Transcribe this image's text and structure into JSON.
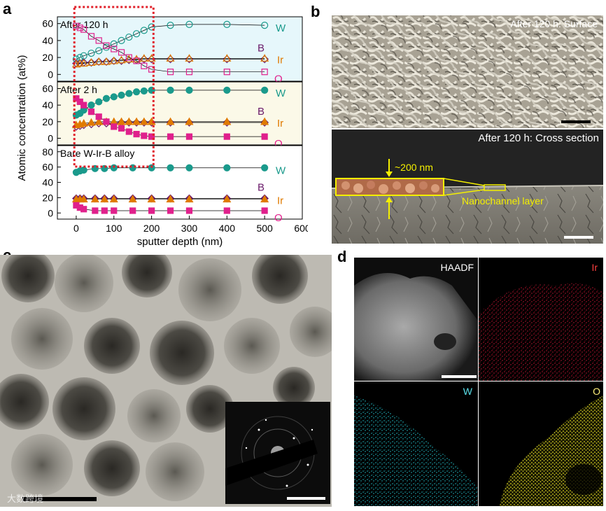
{
  "panels": {
    "a": "a",
    "b": "b",
    "c": "c",
    "d": "d"
  },
  "chart_data": {
    "type": "scatter",
    "xlabel": "sputter depth (nm)",
    "ylabel": "Atomic concentration (at%)",
    "xlim": [
      -50,
      600
    ],
    "xticks": [
      "0",
      "100",
      "200",
      "300",
      "400",
      "500",
      "600"
    ],
    "subplots": [
      {
        "title": "After 120 h",
        "ylim": [
          -8,
          68
        ],
        "yticks": [
          "0",
          "20",
          "40",
          "60"
        ],
        "background": "#e6f7fb",
        "series": [
          {
            "name": "W",
            "color": "#1a9a8c",
            "x": [
              0,
              10,
              20,
              40,
              60,
              80,
              100,
              120,
              140,
              160,
              180,
              200,
              250,
              300,
              400,
              500
            ],
            "y": [
              18,
              20,
              22,
              25,
              28,
              32,
              36,
              40,
              44,
              48,
              52,
              56,
              58,
              59,
              59,
              58
            ]
          },
          {
            "name": "B",
            "color": "#6a1b6a",
            "x": [
              0,
              10,
              20,
              40,
              60,
              80,
              100,
              120,
              140,
              160,
              180,
              200,
              250,
              300,
              400,
              500
            ],
            "y": [
              13,
              13,
              14,
              14,
              15,
              15,
              16,
              16,
              17,
              17,
              18,
              18,
              18,
              18,
              18,
              18
            ]
          },
          {
            "name": "Ir",
            "color": "#e07a00",
            "x": [
              0,
              10,
              20,
              40,
              60,
              80,
              100,
              120,
              140,
              160,
              180,
              200,
              250,
              300,
              400,
              500
            ],
            "y": [
              12,
              13,
              13,
              14,
              15,
              15,
              16,
              17,
              18,
              18,
              19,
              19,
              19,
              19,
              19,
              19
            ]
          },
          {
            "name": "O",
            "color": "#e0208c",
            "x": [
              0,
              10,
              20,
              40,
              60,
              80,
              100,
              120,
              140,
              160,
              180,
              200,
              250,
              300,
              400,
              500
            ],
            "y": [
              57,
              55,
              53,
              45,
              40,
              34,
              30,
              26,
              20,
              16,
              10,
              6,
              3,
              3,
              3,
              3
            ]
          }
        ]
      },
      {
        "title": "After 2 h",
        "ylim": [
          -8,
          68
        ],
        "yticks": [
          "0",
          "20",
          "40",
          "60"
        ],
        "background": "#fbf9e8",
        "series": [
          {
            "name": "W",
            "color": "#1a9a8c",
            "x": [
              0,
              10,
              20,
              40,
              60,
              80,
              100,
              120,
              140,
              160,
              180,
              200,
              250,
              300,
              400,
              500
            ],
            "y": [
              28,
              30,
              34,
              40,
              44,
              48,
              50,
              52,
              54,
              56,
              57,
              58,
              58,
              58,
              58,
              58
            ]
          },
          {
            "name": "B",
            "color": "#6a1b6a",
            "x": [
              0,
              10,
              20,
              40,
              60,
              80,
              100,
              120,
              140,
              160,
              180,
              200,
              250,
              300,
              400,
              500
            ],
            "y": [
              14,
              15,
              16,
              17,
              18,
              18,
              18,
              19,
              19,
              19,
              19,
              19,
              19,
              19,
              19,
              19
            ]
          },
          {
            "name": "Ir",
            "color": "#e07a00",
            "x": [
              0,
              10,
              20,
              40,
              60,
              80,
              100,
              120,
              140,
              160,
              180,
              200,
              250,
              300,
              400,
              500
            ],
            "y": [
              16,
              17,
              18,
              19,
              20,
              20,
              20,
              20,
              20,
              20,
              20,
              20,
              20,
              20,
              20,
              20
            ]
          },
          {
            "name": "O",
            "color": "#e0208c",
            "x": [
              0,
              10,
              20,
              40,
              60,
              80,
              100,
              120,
              140,
              160,
              180,
              200,
              250,
              300,
              400,
              500
            ],
            "y": [
              48,
              44,
              40,
              32,
              26,
              20,
              14,
              12,
              8,
              5,
              3,
              2,
              2,
              2,
              2,
              2
            ]
          }
        ]
      },
      {
        "title": "Bare W-Ir-B alloy",
        "ylim": [
          -8,
          88
        ],
        "yticks": [
          "0",
          "20",
          "40",
          "60",
          "80"
        ],
        "background": "#ffffff",
        "series": [
          {
            "name": "W",
            "color": "#1a9a8c",
            "x": [
              0,
              10,
              20,
              50,
              75,
              100,
              150,
              200,
              250,
              300,
              400,
              500
            ],
            "y": [
              53,
              55,
              56,
              58,
              58,
              59,
              59,
              59,
              59,
              59,
              59,
              59
            ]
          },
          {
            "name": "B",
            "color": "#6a1b6a",
            "x": [
              0,
              10,
              20,
              50,
              75,
              100,
              150,
              200,
              250,
              300,
              400,
              500
            ],
            "y": [
              19,
              19,
              19,
              19,
              19,
              19,
              19,
              19,
              19,
              19,
              19,
              19
            ]
          },
          {
            "name": "Ir",
            "color": "#e07a00",
            "x": [
              0,
              10,
              20,
              50,
              75,
              100,
              150,
              200,
              250,
              300,
              400,
              500
            ],
            "y": [
              18,
              18,
              18,
              18,
              18,
              18,
              18,
              18,
              18,
              18,
              18,
              18
            ]
          },
          {
            "name": "O",
            "color": "#e0208c",
            "x": [
              0,
              10,
              20,
              50,
              75,
              100,
              150,
              200,
              250,
              300,
              400,
              500
            ],
            "y": [
              10,
              7,
              5,
              3,
              3,
              3,
              3,
              3,
              3,
              3,
              3,
              3
            ]
          }
        ]
      }
    ],
    "element_labels": [
      "W",
      "B",
      "Ir",
      "O"
    ],
    "highlight_range_x": [
      -5,
      205
    ]
  },
  "panel_b": {
    "surface_label": "After 120 h: Surface",
    "cross_label": "After 120 h: Cross section",
    "thickness_label": "~200 nm",
    "layer_label": "Nanochannel layer"
  },
  "panel_d": {
    "tiles": [
      "HAADF",
      "Ir",
      "W",
      "O"
    ]
  },
  "watermark": "大数跨境"
}
